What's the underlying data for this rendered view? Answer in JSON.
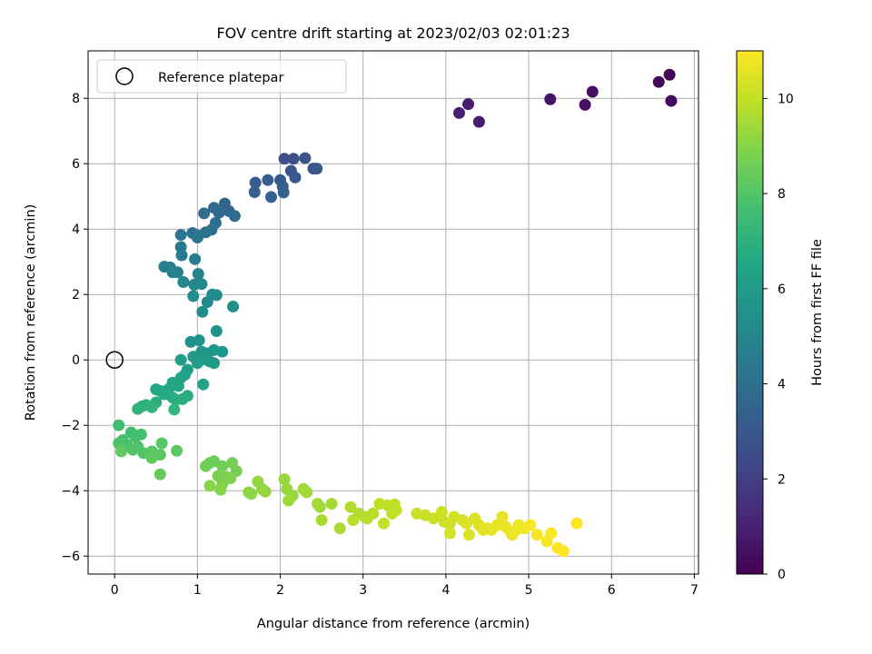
{
  "chart_data": {
    "type": "scatter",
    "title": "FOV centre drift starting at 2023/02/03 02:01:23",
    "xlabel": "Angular distance from reference (arcmin)",
    "ylabel": "Rotation from reference (arcmin)",
    "xlim": [
      -0.32,
      7.05
    ],
    "ylim": [
      -6.55,
      9.45
    ],
    "xticks": [
      "0",
      "1",
      "2",
      "3",
      "4",
      "5",
      "6",
      "7"
    ],
    "yticks": [
      "−6",
      "−4",
      "−2",
      "0",
      "2",
      "4",
      "6",
      "8"
    ],
    "grid": true,
    "legend": {
      "placement": "upper-left",
      "label": "Reference platepar"
    },
    "reference_point": {
      "x": 0,
      "y": 0
    },
    "colorbar": {
      "label": "Hours from first FF file",
      "range": [
        0,
        11
      ],
      "ticks": [
        "0",
        "2",
        "4",
        "6",
        "8",
        "10"
      ],
      "colormap": "viridis"
    },
    "points": [
      [
        6.7,
        8.72,
        0.1
      ],
      [
        6.57,
        8.5,
        0.2
      ],
      [
        6.72,
        7.92,
        0.3
      ],
      [
        5.77,
        8.2,
        0.4
      ],
      [
        5.68,
        7.8,
        0.5
      ],
      [
        5.26,
        7.97,
        0.6
      ],
      [
        4.27,
        7.82,
        0.8
      ],
      [
        4.4,
        7.28,
        0.9
      ],
      [
        4.16,
        7.55,
        1.0
      ],
      [
        2.05,
        6.15,
        2.6
      ],
      [
        2.16,
        6.15,
        2.7
      ],
      [
        2.3,
        6.17,
        2.8
      ],
      [
        2.13,
        5.78,
        2.9
      ],
      [
        2.18,
        5.58,
        3.0
      ],
      [
        2.4,
        5.85,
        2.9
      ],
      [
        2.44,
        5.85,
        3.0
      ],
      [
        2.0,
        5.5,
        3.1
      ],
      [
        1.85,
        5.5,
        3.2
      ],
      [
        1.7,
        5.42,
        3.2
      ],
      [
        2.03,
        5.3,
        3.2
      ],
      [
        2.04,
        5.12,
        3.3
      ],
      [
        1.69,
        5.13,
        3.3
      ],
      [
        1.89,
        4.98,
        3.4
      ],
      [
        1.33,
        4.78,
        3.6
      ],
      [
        1.38,
        4.55,
        3.6
      ],
      [
        1.26,
        4.5,
        3.7
      ],
      [
        1.2,
        4.65,
        3.7
      ],
      [
        1.45,
        4.4,
        3.8
      ],
      [
        1.22,
        4.19,
        3.9
      ],
      [
        1.17,
        3.98,
        4.0
      ],
      [
        1.08,
        4.48,
        3.9
      ],
      [
        1.1,
        3.9,
        4.1
      ],
      [
        0.94,
        3.88,
        4.1
      ],
      [
        1.01,
        3.8,
        4.2
      ],
      [
        1.0,
        3.74,
        4.3
      ],
      [
        0.8,
        3.82,
        4.3
      ],
      [
        0.8,
        3.45,
        4.4
      ],
      [
        0.81,
        3.2,
        4.5
      ],
      [
        0.97,
        3.08,
        4.6
      ],
      [
        0.6,
        2.85,
        4.7
      ],
      [
        0.67,
        2.83,
        4.7
      ],
      [
        0.7,
        2.68,
        4.8
      ],
      [
        0.76,
        2.68,
        4.9
      ],
      [
        1.01,
        2.63,
        4.9
      ],
      [
        0.83,
        2.38,
        5.0
      ],
      [
        1.05,
        2.32,
        5.1
      ],
      [
        0.96,
        2.3,
        5.1
      ],
      [
        1.18,
        2.0,
        5.2
      ],
      [
        1.23,
        1.98,
        5.2
      ],
      [
        0.95,
        1.95,
        5.3
      ],
      [
        1.12,
        1.77,
        5.3
      ],
      [
        1.06,
        1.47,
        5.4
      ],
      [
        1.43,
        1.63,
        5.4
      ],
      [
        1.23,
        0.88,
        5.5
      ],
      [
        0.92,
        0.55,
        5.6
      ],
      [
        1.02,
        0.6,
        5.6
      ],
      [
        1.05,
        0.25,
        5.7
      ],
      [
        1.12,
        0.2,
        5.7
      ],
      [
        1.2,
        0.3,
        5.8
      ],
      [
        1.3,
        0.25,
        5.8
      ],
      [
        0.95,
        0.1,
        5.9
      ],
      [
        1.05,
        0.0,
        5.9
      ],
      [
        1.15,
        -0.05,
        6.0
      ],
      [
        1.2,
        -0.1,
        6.0
      ],
      [
        1.0,
        -0.1,
        6.1
      ],
      [
        0.8,
        0.0,
        6.1
      ],
      [
        0.88,
        -0.3,
        6.2
      ],
      [
        0.85,
        -0.45,
        6.2
      ],
      [
        0.8,
        -0.55,
        6.3
      ],
      [
        1.07,
        -0.75,
        6.3
      ],
      [
        0.7,
        -0.7,
        6.4
      ],
      [
        0.77,
        -0.8,
        6.4
      ],
      [
        0.65,
        -0.9,
        6.5
      ],
      [
        0.55,
        -0.95,
        6.5
      ],
      [
        0.5,
        -0.9,
        6.6
      ],
      [
        0.6,
        -1.05,
        6.7
      ],
      [
        0.7,
        -1.15,
        6.7
      ],
      [
        0.82,
        -1.2,
        6.8
      ],
      [
        0.88,
        -1.1,
        6.8
      ],
      [
        0.74,
        -1.22,
        6.9
      ],
      [
        0.5,
        -1.3,
        6.9
      ],
      [
        0.38,
        -1.38,
        7.0
      ],
      [
        0.33,
        -1.42,
        7.0
      ],
      [
        0.45,
        -1.45,
        7.1
      ],
      [
        0.28,
        -1.5,
        7.1
      ],
      [
        0.72,
        -1.52,
        7.2
      ],
      [
        0.05,
        -2.0,
        7.6
      ],
      [
        0.2,
        -2.22,
        7.6
      ],
      [
        0.32,
        -2.28,
        7.7
      ],
      [
        0.25,
        -2.35,
        7.7
      ],
      [
        0.1,
        -2.45,
        7.8
      ],
      [
        0.15,
        -2.6,
        7.8
      ],
      [
        0.28,
        -2.65,
        7.9
      ],
      [
        0.05,
        -2.55,
        7.9
      ],
      [
        0.22,
        -2.75,
        8.0
      ],
      [
        0.35,
        -2.85,
        8.0
      ],
      [
        0.45,
        -2.8,
        8.1
      ],
      [
        0.57,
        -2.55,
        8.1
      ],
      [
        0.55,
        -2.9,
        8.2
      ],
      [
        0.75,
        -2.78,
        8.2
      ],
      [
        0.45,
        -3.0,
        8.3
      ],
      [
        0.08,
        -2.8,
        8.3
      ],
      [
        0.55,
        -3.5,
        8.4
      ],
      [
        1.2,
        -3.1,
        8.5
      ],
      [
        1.15,
        -3.15,
        8.5
      ],
      [
        1.1,
        -3.25,
        8.6
      ],
      [
        1.3,
        -3.25,
        8.6
      ],
      [
        1.42,
        -3.15,
        8.7
      ],
      [
        1.47,
        -3.4,
        8.7
      ],
      [
        1.25,
        -3.55,
        8.8
      ],
      [
        1.35,
        -3.58,
        8.8
      ],
      [
        1.4,
        -3.62,
        8.9
      ],
      [
        1.3,
        -3.8,
        8.9
      ],
      [
        1.15,
        -3.85,
        9.0
      ],
      [
        1.28,
        -3.97,
        9.0
      ],
      [
        1.62,
        -4.05,
        9.1
      ],
      [
        1.65,
        -4.1,
        9.1
      ],
      [
        1.78,
        -3.95,
        9.2
      ],
      [
        1.82,
        -4.03,
        9.2
      ],
      [
        1.73,
        -3.72,
        9.2
      ],
      [
        2.05,
        -3.65,
        9.3
      ],
      [
        2.08,
        -3.95,
        9.3
      ],
      [
        2.15,
        -4.15,
        9.3
      ],
      [
        2.1,
        -4.3,
        9.4
      ],
      [
        2.28,
        -3.95,
        9.4
      ],
      [
        2.32,
        -4.05,
        9.4
      ],
      [
        2.45,
        -4.4,
        9.5
      ],
      [
        2.48,
        -4.5,
        9.5
      ],
      [
        2.62,
        -4.4,
        9.5
      ],
      [
        2.5,
        -4.9,
        9.6
      ],
      [
        2.72,
        -5.15,
        9.6
      ],
      [
        2.85,
        -4.5,
        9.7
      ],
      [
        2.95,
        -4.7,
        9.7
      ],
      [
        3.02,
        -4.8,
        9.7
      ],
      [
        2.88,
        -4.9,
        9.8
      ],
      [
        3.05,
        -4.85,
        9.8
      ],
      [
        3.12,
        -4.7,
        9.8
      ],
      [
        3.2,
        -4.4,
        9.9
      ],
      [
        3.3,
        -4.45,
        9.9
      ],
      [
        3.38,
        -4.42,
        9.9
      ],
      [
        3.4,
        -4.6,
        10.0
      ],
      [
        3.35,
        -4.7,
        10.0
      ],
      [
        3.25,
        -5.0,
        10.0
      ],
      [
        3.65,
        -4.7,
        10.1
      ],
      [
        3.75,
        -4.75,
        10.1
      ],
      [
        3.85,
        -4.85,
        10.1
      ],
      [
        3.95,
        -4.65,
        10.2
      ],
      [
        3.98,
        -4.95,
        10.2
      ],
      [
        4.05,
        -5.0,
        10.2
      ],
      [
        4.1,
        -4.8,
        10.3
      ],
      [
        4.05,
        -5.3,
        10.3
      ],
      [
        4.2,
        -4.9,
        10.3
      ],
      [
        4.25,
        -5.0,
        10.4
      ],
      [
        4.28,
        -5.35,
        10.4
      ],
      [
        4.35,
        -4.85,
        10.4
      ],
      [
        4.4,
        -5.05,
        10.5
      ],
      [
        4.45,
        -5.2,
        10.5
      ],
      [
        4.5,
        -5.15,
        10.5
      ],
      [
        4.55,
        -5.2,
        10.6
      ],
      [
        4.62,
        -5.05,
        10.6
      ],
      [
        4.68,
        -4.8,
        10.6
      ],
      [
        4.72,
        -5.1,
        10.7
      ],
      [
        4.78,
        -5.25,
        10.7
      ],
      [
        4.8,
        -5.35,
        10.7
      ],
      [
        4.85,
        -5.2,
        10.8
      ],
      [
        4.88,
        -5.05,
        10.8
      ],
      [
        4.95,
        -5.15,
        10.8
      ],
      [
        5.02,
        -5.05,
        10.9
      ],
      [
        5.1,
        -5.35,
        10.9
      ],
      [
        5.22,
        -5.55,
        10.9
      ],
      [
        5.27,
        -5.3,
        10.95
      ],
      [
        5.35,
        -5.75,
        11.0
      ],
      [
        5.42,
        -5.85,
        11.0
      ],
      [
        5.58,
        -5.0,
        11.0
      ]
    ]
  }
}
